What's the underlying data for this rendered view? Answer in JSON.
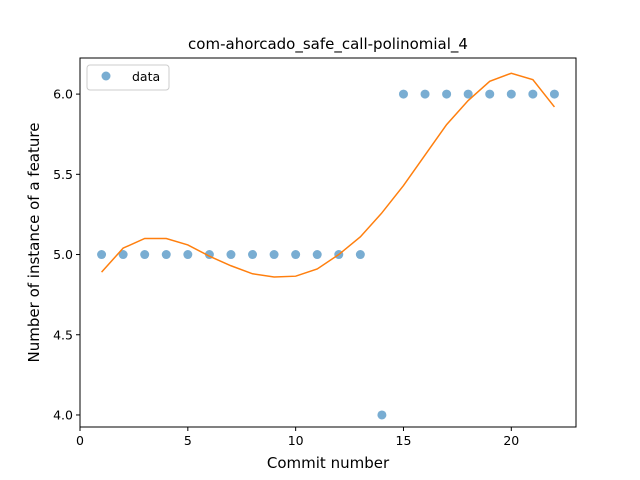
{
  "chart_data": {
    "type": "scatter",
    "title": "com-ahorcado_safe_call-polinomial_4",
    "xlabel": "Commit number",
    "ylabel": "Number of instance of a feature",
    "xlim": [
      0,
      23
    ],
    "ylim": [
      3.925,
      6.225
    ],
    "xticks": [
      0,
      5,
      10,
      15,
      20
    ],
    "yticks": [
      4.0,
      4.5,
      5.0,
      5.5,
      6.0
    ],
    "xtick_labels": [
      "0",
      "5",
      "10",
      "15",
      "20"
    ],
    "ytick_labels": [
      "4.0",
      "4.5",
      "5.0",
      "5.5",
      "6.0"
    ],
    "grid": false,
    "legend_position": "upper-left",
    "series": [
      {
        "name": "data",
        "kind": "scatter",
        "color": "#1f77b4",
        "x": [
          1,
          2,
          3,
          4,
          5,
          6,
          7,
          8,
          9,
          10,
          11,
          12,
          13,
          14,
          15,
          16,
          17,
          18,
          19,
          20,
          21,
          22
        ],
        "y": [
          5,
          5,
          5,
          5,
          5,
          5,
          5,
          5,
          5,
          5,
          5,
          5,
          5,
          4,
          6,
          6,
          6,
          6,
          6,
          6,
          6,
          6
        ]
      },
      {
        "kind": "line",
        "color": "#ff7f0e",
        "x": [
          1,
          2,
          3,
          4,
          5,
          6,
          7,
          8,
          9,
          10,
          11,
          12,
          13,
          14,
          15,
          16,
          17,
          18,
          19,
          20,
          21,
          22
        ],
        "y": [
          4.89,
          5.04,
          5.1,
          5.1,
          5.06,
          4.99,
          4.93,
          4.88,
          4.86,
          4.865,
          4.91,
          5.0,
          5.11,
          5.26,
          5.43,
          5.62,
          5.81,
          5.96,
          6.08,
          6.13,
          6.09,
          5.92
        ]
      }
    ]
  }
}
